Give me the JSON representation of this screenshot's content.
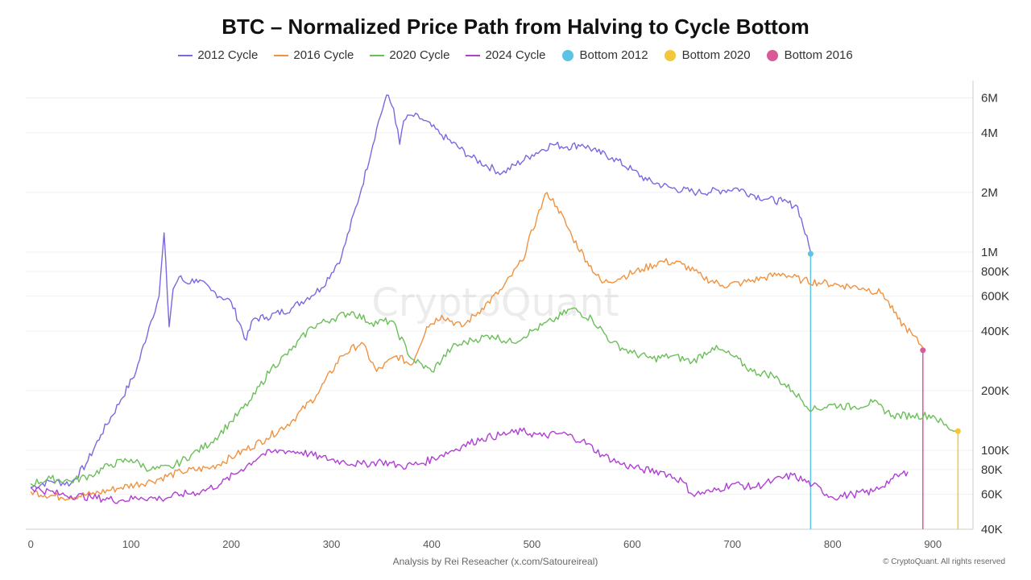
{
  "chart_data": {
    "type": "line",
    "title": "BTC – Normalized Price Path from Halving to Cycle Bottom",
    "xlabel": "",
    "ylabel": "",
    "xlim": [
      -5,
      940
    ],
    "ylim": [
      40000,
      7000000
    ],
    "y_scale": "log",
    "grid": "horizontal",
    "legend_position": "top-center",
    "x_ticks": [
      "0",
      "100",
      "200",
      "300",
      "400",
      "500",
      "600",
      "700",
      "800",
      "900"
    ],
    "y_ticks": [
      {
        "value": 6000000,
        "label": "6M"
      },
      {
        "value": 4000000,
        "label": "4M"
      },
      {
        "value": 2000000,
        "label": "2M"
      },
      {
        "value": 1000000,
        "label": "1M"
      },
      {
        "value": 800000,
        "label": "800K"
      },
      {
        "value": 600000,
        "label": "600K"
      },
      {
        "value": 400000,
        "label": "400K"
      },
      {
        "value": 200000,
        "label": "200K"
      },
      {
        "value": 100000,
        "label": "100K"
      },
      {
        "value": 80000,
        "label": "80K"
      },
      {
        "value": 60000,
        "label": "60K"
      },
      {
        "value": 40000,
        "label": "40K"
      }
    ],
    "series": [
      {
        "name": "2012 Cycle",
        "color": "#7b68e0",
        "x": [
          0,
          20,
          40,
          55,
          70,
          90,
          105,
          118,
          128,
          133,
          138,
          142,
          148,
          155,
          165,
          180,
          200,
          215,
          222,
          235,
          260,
          290,
          310,
          330,
          345,
          355,
          362,
          368,
          372,
          380,
          390,
          410,
          440,
          470,
          500,
          520,
          535,
          550,
          565,
          580,
          600,
          615,
          640,
          665,
          690,
          705,
          720,
          735,
          750,
          765,
          778
        ],
        "y": [
          65000,
          70000,
          68000,
          85000,
          120000,
          180000,
          250000,
          420000,
          600000,
          1250000,
          420000,
          650000,
          750000,
          700000,
          730000,
          640000,
          560000,
          360000,
          460000,
          470000,
          520000,
          660000,
          950000,
          2100000,
          4200000,
          6200000,
          5300000,
          3500000,
          4600000,
          4900000,
          4700000,
          3900000,
          3000000,
          2500000,
          3100000,
          3500000,
          3400000,
          3500000,
          3200000,
          3000000,
          2600000,
          2300000,
          2100000,
          2000000,
          2050000,
          2100000,
          1950000,
          1850000,
          1800000,
          1700000,
          1000000
        ]
      },
      {
        "name": "2016 Cycle",
        "color": "#f0923f",
        "x": [
          0,
          30,
          60,
          90,
          120,
          150,
          180,
          205,
          235,
          260,
          285,
          310,
          330,
          345,
          365,
          380,
          395,
          410,
          430,
          450,
          470,
          490,
          505,
          515,
          525,
          540,
          555,
          570,
          590,
          610,
          630,
          650,
          670,
          690,
          710,
          730,
          750,
          770,
          790,
          810,
          830,
          850,
          865,
          880,
          890
        ],
        "y": [
          62000,
          58000,
          60000,
          65000,
          70000,
          78000,
          82000,
          95000,
          115000,
          140000,
          190000,
          300000,
          350000,
          250000,
          300000,
          270000,
          420000,
          480000,
          420000,
          520000,
          650000,
          900000,
          1500000,
          2000000,
          1700000,
          1200000,
          900000,
          700000,
          750000,
          820000,
          900000,
          870000,
          750000,
          680000,
          700000,
          740000,
          780000,
          720000,
          700000,
          680000,
          660000,
          620000,
          460000,
          380000,
          330000
        ]
      },
      {
        "name": "2020 Cycle",
        "color": "#6bbf59",
        "x": [
          0,
          20,
          40,
          60,
          80,
          100,
          120,
          140,
          160,
          180,
          200,
          220,
          240,
          260,
          280,
          300,
          320,
          340,
          360,
          380,
          400,
          420,
          440,
          460,
          480,
          500,
          520,
          540,
          560,
          580,
          600,
          620,
          640,
          660,
          680,
          700,
          720,
          740,
          760,
          780,
          800,
          820,
          840,
          860,
          880,
          900,
          915,
          925
        ],
        "y": [
          68000,
          72000,
          70000,
          75000,
          85000,
          90000,
          80000,
          82000,
          95000,
          110000,
          140000,
          180000,
          260000,
          320000,
          420000,
          460000,
          500000,
          440000,
          450000,
          290000,
          250000,
          330000,
          360000,
          380000,
          350000,
          400000,
          450000,
          520000,
          460000,
          350000,
          310000,
          290000,
          300000,
          280000,
          330000,
          300000,
          250000,
          240000,
          200000,
          160000,
          170000,
          165000,
          175000,
          150000,
          150000,
          150000,
          130000,
          125000
        ]
      },
      {
        "name": "2024 Cycle",
        "color": "#b03fd4",
        "x": [
          0,
          30,
          60,
          90,
          110,
          130,
          150,
          170,
          190,
          210,
          230,
          250,
          270,
          290,
          310,
          330,
          350,
          370,
          390,
          410,
          430,
          450,
          470,
          490,
          510,
          530,
          550,
          570,
          590,
          610,
          630,
          650,
          660,
          680,
          700,
          720,
          740,
          760,
          780,
          800,
          820,
          840,
          860,
          875
        ],
        "y": [
          65000,
          60000,
          58000,
          56000,
          58000,
          57000,
          60000,
          62000,
          68000,
          80000,
          95000,
          100000,
          98000,
          92000,
          88000,
          85000,
          88000,
          83000,
          86000,
          95000,
          105000,
          115000,
          120000,
          125000,
          118000,
          122000,
          112000,
          95000,
          85000,
          80000,
          78000,
          70000,
          60000,
          62000,
          68000,
          65000,
          70000,
          75000,
          67000,
          58000,
          60000,
          62000,
          72000,
          78000
        ]
      }
    ],
    "bottom_markers": [
      {
        "name": "Bottom 2012",
        "x": 778,
        "y": 980000,
        "color": "#5bc4e6"
      },
      {
        "name": "Bottom 2016",
        "x": 890,
        "y": 320000,
        "color": "#d95a96"
      },
      {
        "name": "Bottom 2020",
        "x": 925,
        "y": 125000,
        "color": "#f2c73a"
      }
    ]
  },
  "legend": {
    "items": [
      {
        "label": "2012 Cycle",
        "kind": "line",
        "color": "#7b68e0"
      },
      {
        "label": "2016 Cycle",
        "kind": "line",
        "color": "#f0923f"
      },
      {
        "label": "2020 Cycle",
        "kind": "line",
        "color": "#6bbf59"
      },
      {
        "label": "2024 Cycle",
        "kind": "line",
        "color": "#b03fd4"
      },
      {
        "label": "Bottom 2012",
        "kind": "dot",
        "color": "#5bc4e6"
      },
      {
        "label": "Bottom 2020",
        "kind": "dot",
        "color": "#f2c73a"
      },
      {
        "label": "Bottom 2016",
        "kind": "dot",
        "color": "#d95a96"
      }
    ]
  },
  "watermark": "CryptoQuant",
  "footer": {
    "analysis": "Analysis by Rei Reseacher (x.com/Satoureireal)",
    "copyright": "© CryptoQuant. All rights reserved"
  }
}
